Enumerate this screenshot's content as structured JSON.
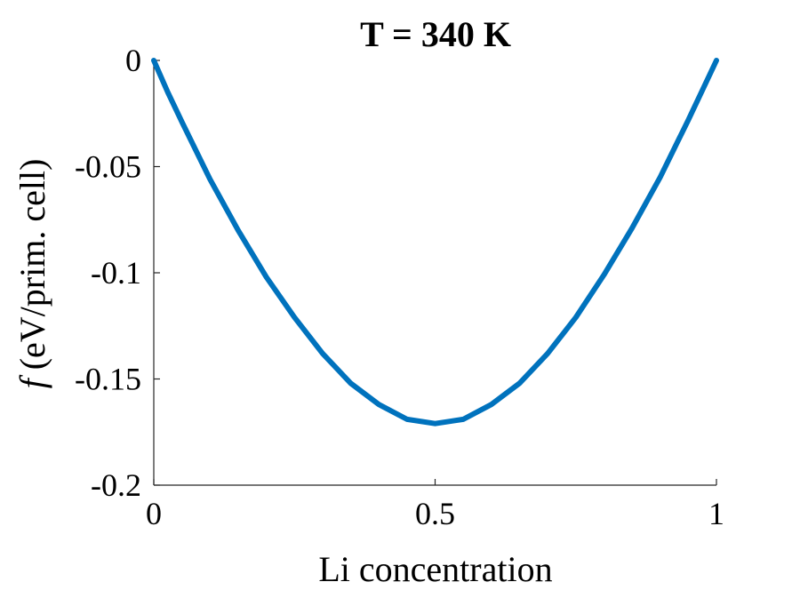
{
  "chart_data": {
    "type": "line",
    "title": "T = 340 K",
    "xlabel": "Li concentration",
    "ylabel_symbol": "f",
    "ylabel": "(eV/prim.  cell)",
    "xlim": [
      0,
      1
    ],
    "ylim": [
      -0.2,
      0
    ],
    "x_ticks": [
      0,
      0.5,
      1
    ],
    "x_tick_labels": [
      "0",
      "0.5",
      "1"
    ],
    "y_ticks": [
      0,
      -0.05,
      -0.1,
      -0.15,
      -0.2
    ],
    "y_tick_labels": [
      "0",
      "-0.05",
      "-0.1",
      "-0.15",
      "-0.2"
    ],
    "grid": false,
    "series": [
      {
        "color": "#0072BD",
        "x": [
          0,
          0.025,
          0.05,
          0.1,
          0.15,
          0.2,
          0.25,
          0.3,
          0.35,
          0.4,
          0.45,
          0.5,
          0.55,
          0.6,
          0.65,
          0.7,
          0.75,
          0.8,
          0.85,
          0.9,
          0.95,
          0.975,
          1
        ],
        "y": [
          0,
          -0.015,
          -0.029,
          -0.056,
          -0.08,
          -0.102,
          -0.121,
          -0.138,
          -0.152,
          -0.162,
          -0.169,
          -0.171,
          -0.169,
          -0.162,
          -0.152,
          -0.138,
          -0.121,
          -0.101,
          -0.079,
          -0.055,
          -0.028,
          -0.014,
          0
        ]
      }
    ]
  }
}
